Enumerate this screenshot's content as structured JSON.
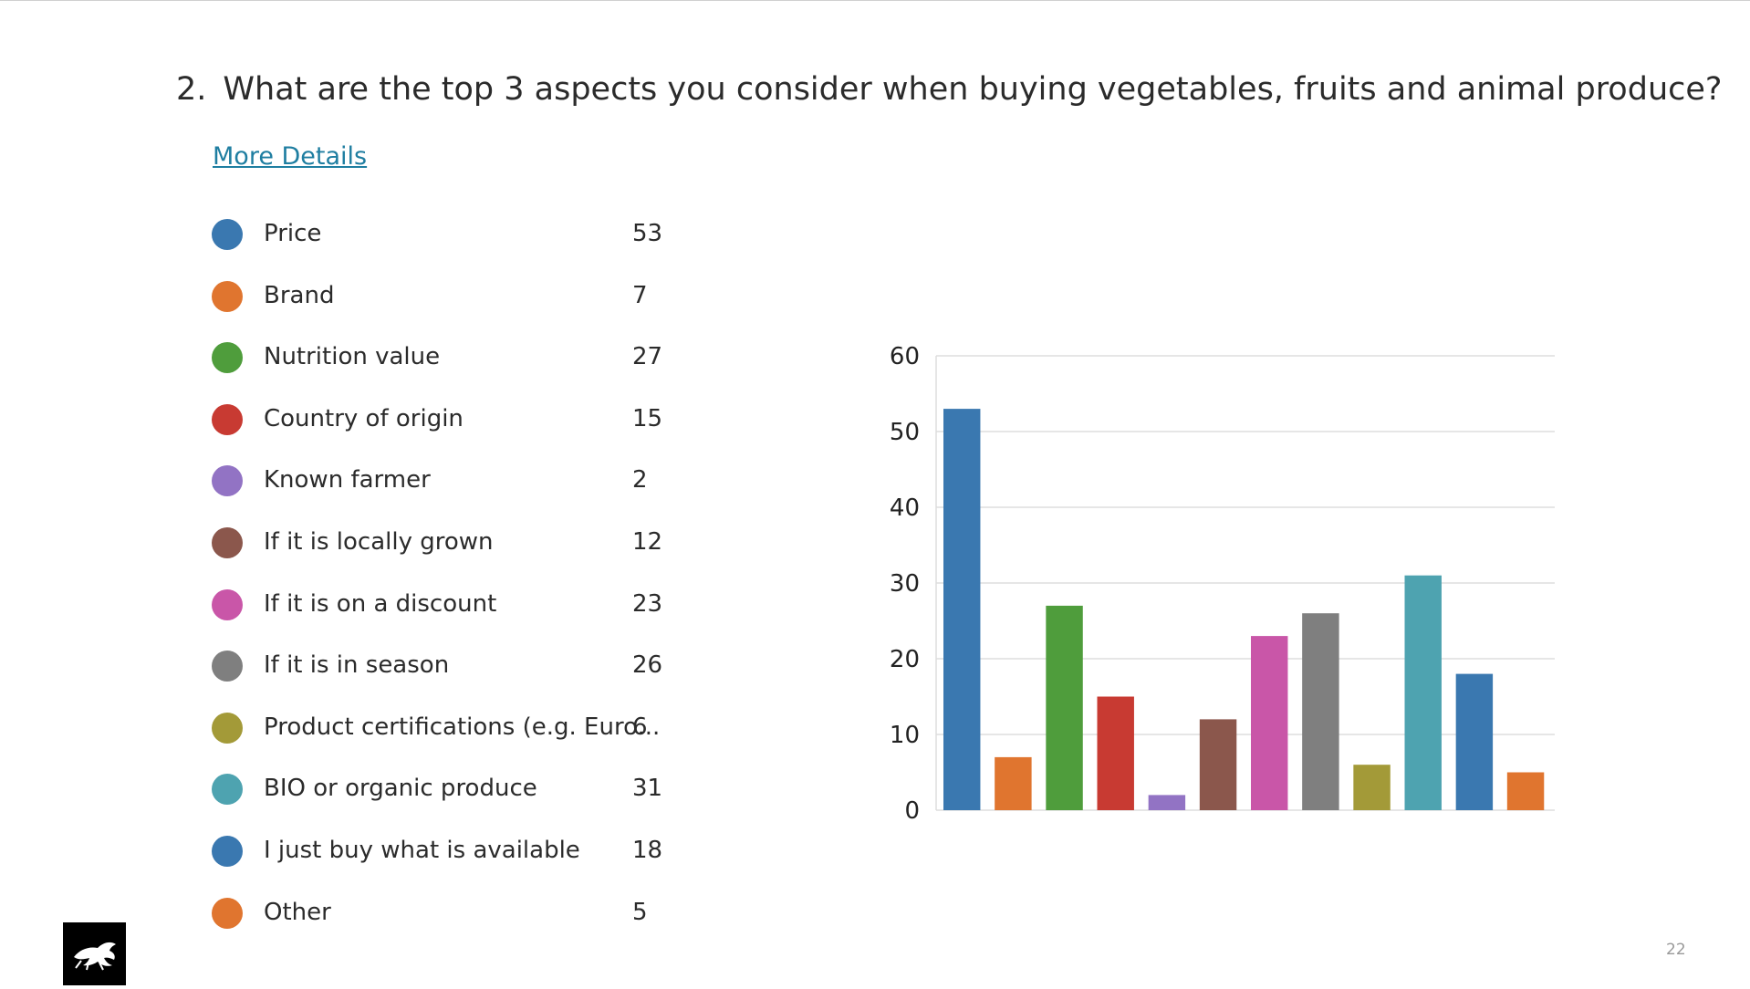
{
  "question": {
    "number": "2.",
    "text": "What are the top 3 aspects you consider when buying vegetables, fruits and animal produce?"
  },
  "more_details_label": "More Details",
  "legend": [
    {
      "label": "Price",
      "value": "53",
      "color": "#3a78b0"
    },
    {
      "label": "Brand",
      "value": "7",
      "color": "#e0752f"
    },
    {
      "label": "Nutrition value",
      "value": "27",
      "color": "#4f9d3c"
    },
    {
      "label": "Country of origin",
      "value": "15",
      "color": "#c83a32"
    },
    {
      "label": "Known farmer",
      "value": "2",
      "color": "#9273c4"
    },
    {
      "label": "If it is locally grown",
      "value": "12",
      "color": "#8b574c"
    },
    {
      "label": "If it is on a discount",
      "value": "23",
      "color": "#c956a8"
    },
    {
      "label": "If it is in season",
      "value": "26",
      "color": "#7f7f7f"
    },
    {
      "label": "Product certifications (e.g. Euro...",
      "value": "6",
      "color": "#a39a38"
    },
    {
      "label": "BIO or organic produce",
      "value": "31",
      "color": "#4ea3b0"
    },
    {
      "label": "I just buy what is available",
      "value": "18",
      "color": "#3a78b0"
    },
    {
      "label": "Other",
      "value": "5",
      "color": "#e0752f"
    }
  ],
  "chart_data": {
    "type": "bar",
    "categories": [
      "Price",
      "Brand",
      "Nutrition value",
      "Country of origin",
      "Known farmer",
      "If it is locally grown",
      "If it is on a discount",
      "If it is in season",
      "Product certifications (e.g. Euro...",
      "BIO or organic produce",
      "I just buy what is available",
      "Other"
    ],
    "values": [
      53,
      7,
      27,
      15,
      2,
      12,
      23,
      26,
      6,
      31,
      18,
      5
    ],
    "colors": [
      "#3a78b0",
      "#e0752f",
      "#4f9d3c",
      "#c83a32",
      "#9273c4",
      "#8b574c",
      "#c956a8",
      "#7f7f7f",
      "#a39a38",
      "#4ea3b0",
      "#3a78b0",
      "#e0752f"
    ],
    "ylim": [
      0,
      60
    ],
    "yticks": [
      0,
      10,
      20,
      30,
      40,
      50,
      60
    ],
    "grid": true,
    "gridColor": "#dddddd",
    "title": "",
    "xlabel": "",
    "ylabel": ""
  },
  "page_number": "22",
  "logo_icon": "leaping-animal-logo-icon"
}
